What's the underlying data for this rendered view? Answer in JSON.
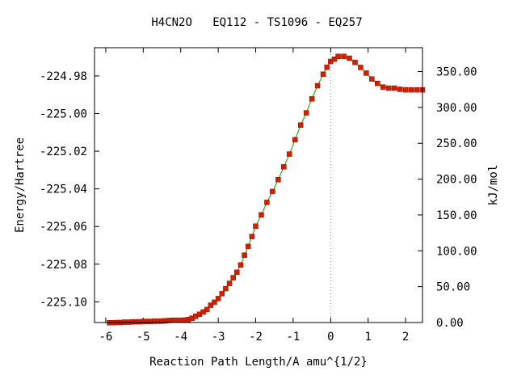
{
  "chart_data": {
    "type": "line",
    "title": "H4CN2O   EQ112 - TS1096 - EQ257",
    "xlabel": "Reaction Path Length/A amu^{1/2}",
    "ylabel": "Energy/Hartree",
    "y2label": "kJ/mol",
    "xlim": [
      -6.3,
      2.45
    ],
    "ylim": [
      -225.111,
      -224.965
    ],
    "y2lim": [
      0,
      383.3
    ],
    "x_ticks": [
      -6,
      -5,
      -4,
      -3,
      -2,
      -1,
      0,
      1,
      2
    ],
    "x_tick_labels": [
      "-6",
      "-5",
      "-4",
      "-3",
      "-2",
      "-1",
      "0",
      "1",
      "2"
    ],
    "y_ticks": [
      -224.98,
      -225.0,
      -225.02,
      -225.04,
      -225.06,
      -225.08,
      -225.1
    ],
    "y_tick_labels": [
      "-224.98",
      "-225.00",
      "-225.02",
      "-225.04",
      "-225.06",
      "-225.08",
      "-225.10"
    ],
    "y2_ticks": [
      350,
      300,
      250,
      200,
      150,
      100,
      50,
      0
    ],
    "y2_tick_labels": [
      "350.00",
      "300.00",
      "250.00",
      "200.00",
      "150.00",
      "100.00",
      "50.00",
      "0.00"
    ],
    "ts_x": 0,
    "grid": false,
    "line_color": "#00aa00",
    "marker_color": "#cc2200",
    "ts_line_color": "#888888",
    "series": [
      {
        "x": [
          -5.9,
          -5.8,
          -5.7,
          -5.6,
          -5.5,
          -5.4,
          -5.3,
          -5.2,
          -5.1,
          -5.0,
          -4.9,
          -4.8,
          -4.7,
          -4.6,
          -4.5,
          -4.4,
          -4.3,
          -4.2,
          -4.1,
          -4.0,
          -3.9,
          -3.8,
          -3.7,
          -3.6,
          -3.5,
          -3.4,
          -3.3,
          -3.2,
          -3.1,
          -3.0,
          -2.9,
          -2.8,
          -2.7,
          -2.6,
          -2.5,
          -2.4,
          -2.3,
          -2.2,
          -2.1,
          -2.0,
          -1.85,
          -1.7,
          -1.55,
          -1.4,
          -1.25,
          -1.1,
          -0.95,
          -0.8,
          -0.65,
          -0.5,
          -0.35,
          -0.2,
          -0.1,
          0.0,
          0.1,
          0.2,
          0.35,
          0.5,
          0.65,
          0.8,
          0.95,
          1.1,
          1.25,
          1.4,
          1.55,
          1.7,
          1.85,
          2.0,
          2.15,
          2.3,
          2.45
        ],
        "y": [
          -225.1111,
          -225.1111,
          -225.111,
          -225.111,
          -225.1108,
          -225.1108,
          -225.1107,
          -225.1106,
          -225.1106,
          -225.1105,
          -225.1104,
          -225.1104,
          -225.1103,
          -225.1103,
          -225.1102,
          -225.1101,
          -225.1099,
          -225.1098,
          -225.1098,
          -225.1098,
          -225.1097,
          -225.1094,
          -225.1087,
          -225.1077,
          -225.1066,
          -225.1054,
          -225.1041,
          -225.1018,
          -225.1002,
          -225.0983,
          -225.0957,
          -225.093,
          -225.0902,
          -225.0872,
          -225.0843,
          -225.0804,
          -225.0752,
          -225.0706,
          -225.0653,
          -225.0598,
          -225.0538,
          -225.0472,
          -225.0414,
          -225.0351,
          -225.0283,
          -225.0215,
          -225.0139,
          -225.0061,
          -224.9996,
          -224.9922,
          -224.9852,
          -224.9791,
          -224.9754,
          -224.9723,
          -224.9711,
          -224.9696,
          -224.9696,
          -224.9706,
          -224.9728,
          -224.9755,
          -224.9785,
          -224.9816,
          -224.984,
          -224.9859,
          -224.9865,
          -224.9865,
          -224.9871,
          -224.9874,
          -224.9874,
          -224.9874,
          -224.9874
        ]
      }
    ]
  }
}
